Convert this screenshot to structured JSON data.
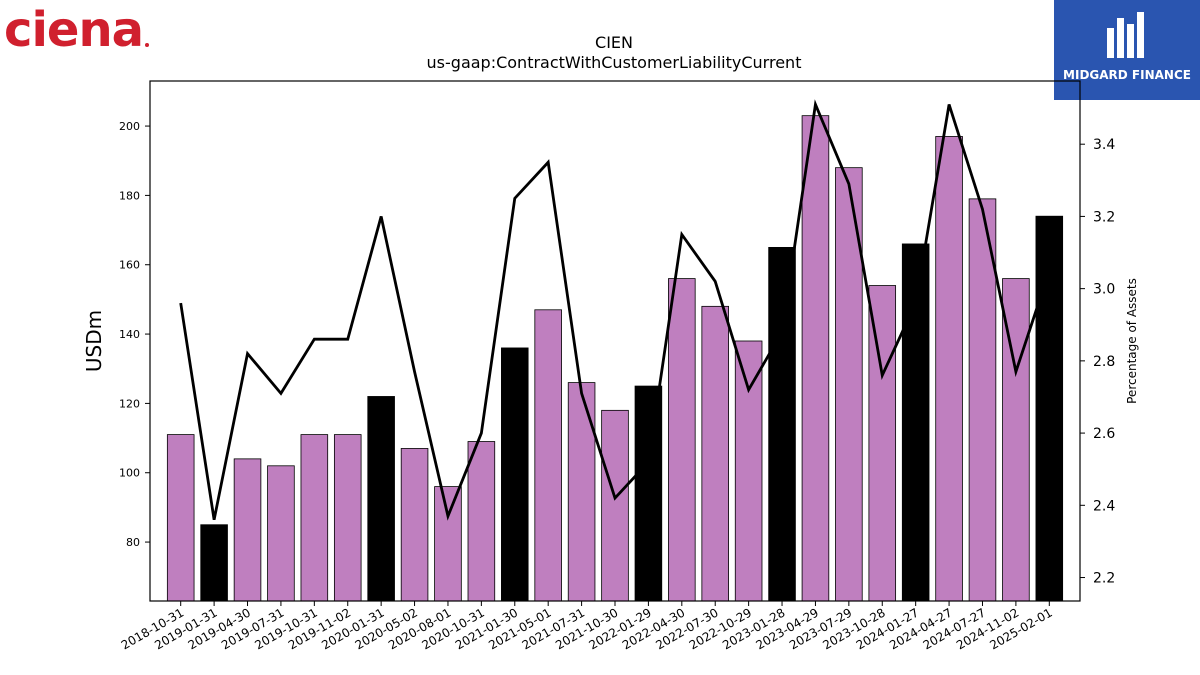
{
  "brand": {
    "left_logo_text": "ciena",
    "left_logo_color": "#d0202e",
    "right_logo_text": "MIDGARD FINANCE",
    "right_logo_bg": "#2a55b0"
  },
  "chart_data": {
    "type": "bar",
    "title": "CIEN",
    "subtitle": "us-gaap:ContractWithCustomerLiabilityCurrent",
    "ylabel": "USDm",
    "y2label": "Percentage of Assets",
    "ylim": [
      63,
      213
    ],
    "y2lim": [
      2.135,
      3.575
    ],
    "yticks": [
      80,
      100,
      120,
      140,
      160,
      180,
      200
    ],
    "y2ticks": [
      2.2,
      2.4,
      2.6,
      2.8,
      3.0,
      3.2,
      3.4
    ],
    "ytick_labels": [
      "80",
      "100",
      "120",
      "140",
      "160",
      "180",
      "200"
    ],
    "y2tick_labels": [
      "2.2",
      "2.4",
      "2.6",
      "2.8",
      "3.0",
      "3.2",
      "3.4"
    ],
    "grid": false,
    "colors": {
      "quarter_bar": "#bf7fbf",
      "fiscal_year_end_bar": "#000000",
      "line": "#000000"
    },
    "categories": [
      "2018-10-31",
      "2019-01-31",
      "2019-04-30",
      "2019-07-31",
      "2019-10-31",
      "2019-11-02",
      "2020-01-31",
      "2020-05-02",
      "2020-08-01",
      "2020-10-31",
      "2021-01-30",
      "2021-05-01",
      "2021-07-31",
      "2021-10-30",
      "2022-01-29",
      "2022-04-30",
      "2022-07-30",
      "2022-10-29",
      "2023-01-28",
      "2023-04-29",
      "2023-07-29",
      "2023-10-28",
      "2024-01-27",
      "2024-04-27",
      "2024-07-27",
      "2024-11-02",
      "2025-02-01"
    ],
    "series": [
      {
        "kind": "bar",
        "values": [
          111,
          85,
          104,
          102,
          111,
          111,
          122,
          107,
          96,
          109,
          136,
          147,
          126,
          118,
          125,
          156,
          148,
          138,
          165,
          203,
          188,
          154,
          166,
          197,
          179,
          156,
          174
        ],
        "highlight": [
          false,
          true,
          false,
          false,
          false,
          false,
          true,
          false,
          false,
          false,
          true,
          false,
          false,
          false,
          true,
          false,
          false,
          false,
          true,
          false,
          false,
          false,
          true,
          false,
          false,
          false,
          true
        ]
      },
      {
        "kind": "line",
        "axis": "right",
        "values": [
          2.96,
          2.36,
          2.82,
          2.71,
          2.86,
          2.86,
          3.2,
          2.77,
          2.37,
          2.6,
          3.25,
          3.35,
          2.71,
          2.42,
          2.52,
          3.15,
          3.02,
          2.72,
          2.88,
          3.51,
          3.29,
          2.76,
          2.96,
          3.51,
          3.22,
          2.77,
          3.05
        ]
      }
    ]
  }
}
